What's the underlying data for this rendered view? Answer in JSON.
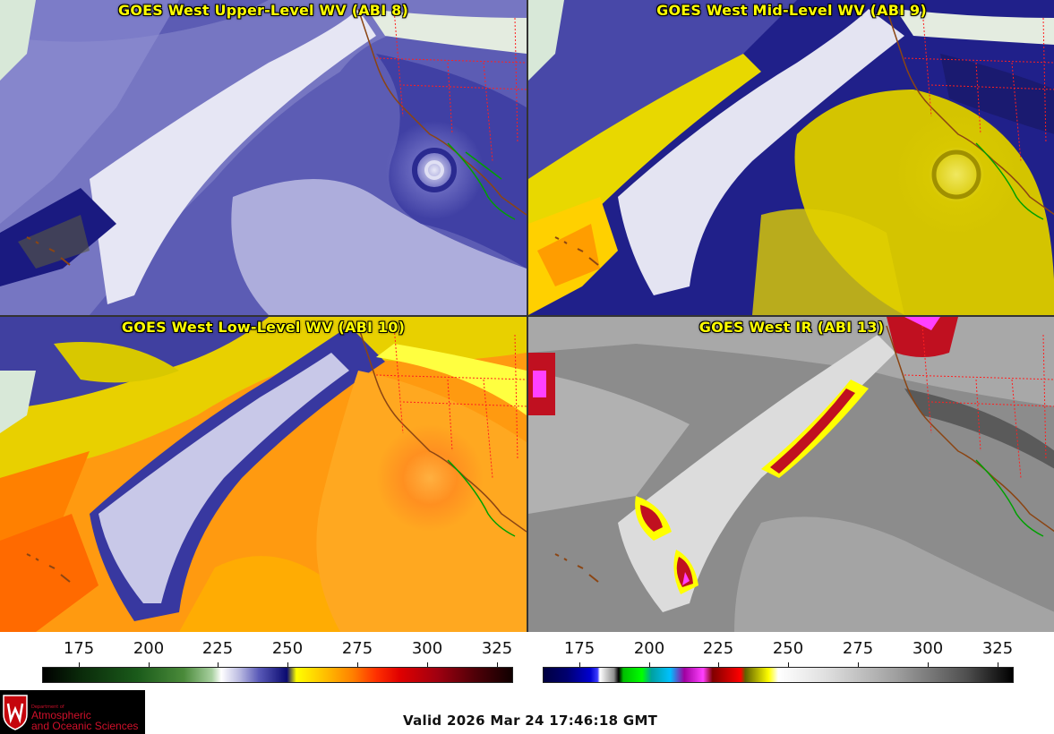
{
  "panels": {
    "upper": {
      "title": "GOES West Upper-Level WV (ABI 8)"
    },
    "mid": {
      "title": "GOES West Mid-Level WV (ABI 9)"
    },
    "low": {
      "title": "GOES West Low-Level WV (ABI 10)"
    },
    "ir": {
      "title": "GOES West IR (ABI 13)"
    }
  },
  "colorbars": {
    "wv": {
      "ticks": [
        "175",
        "200",
        "225",
        "250",
        "275",
        "300",
        "325"
      ]
    },
    "ir": {
      "ticks": [
        "175",
        "200",
        "225",
        "250",
        "275",
        "300",
        "325"
      ]
    }
  },
  "logo": {
    "dept": "Department of",
    "line1": "Atmospheric",
    "line2": "and Oceanic Sciences"
  },
  "footer": {
    "valid": "Valid 2026 Mar 24 17:46:18 GMT"
  },
  "colors": {
    "title": "#ffff00",
    "borders": "#ff2020",
    "coast": "#8b4513",
    "mexico": "#00a000"
  }
}
